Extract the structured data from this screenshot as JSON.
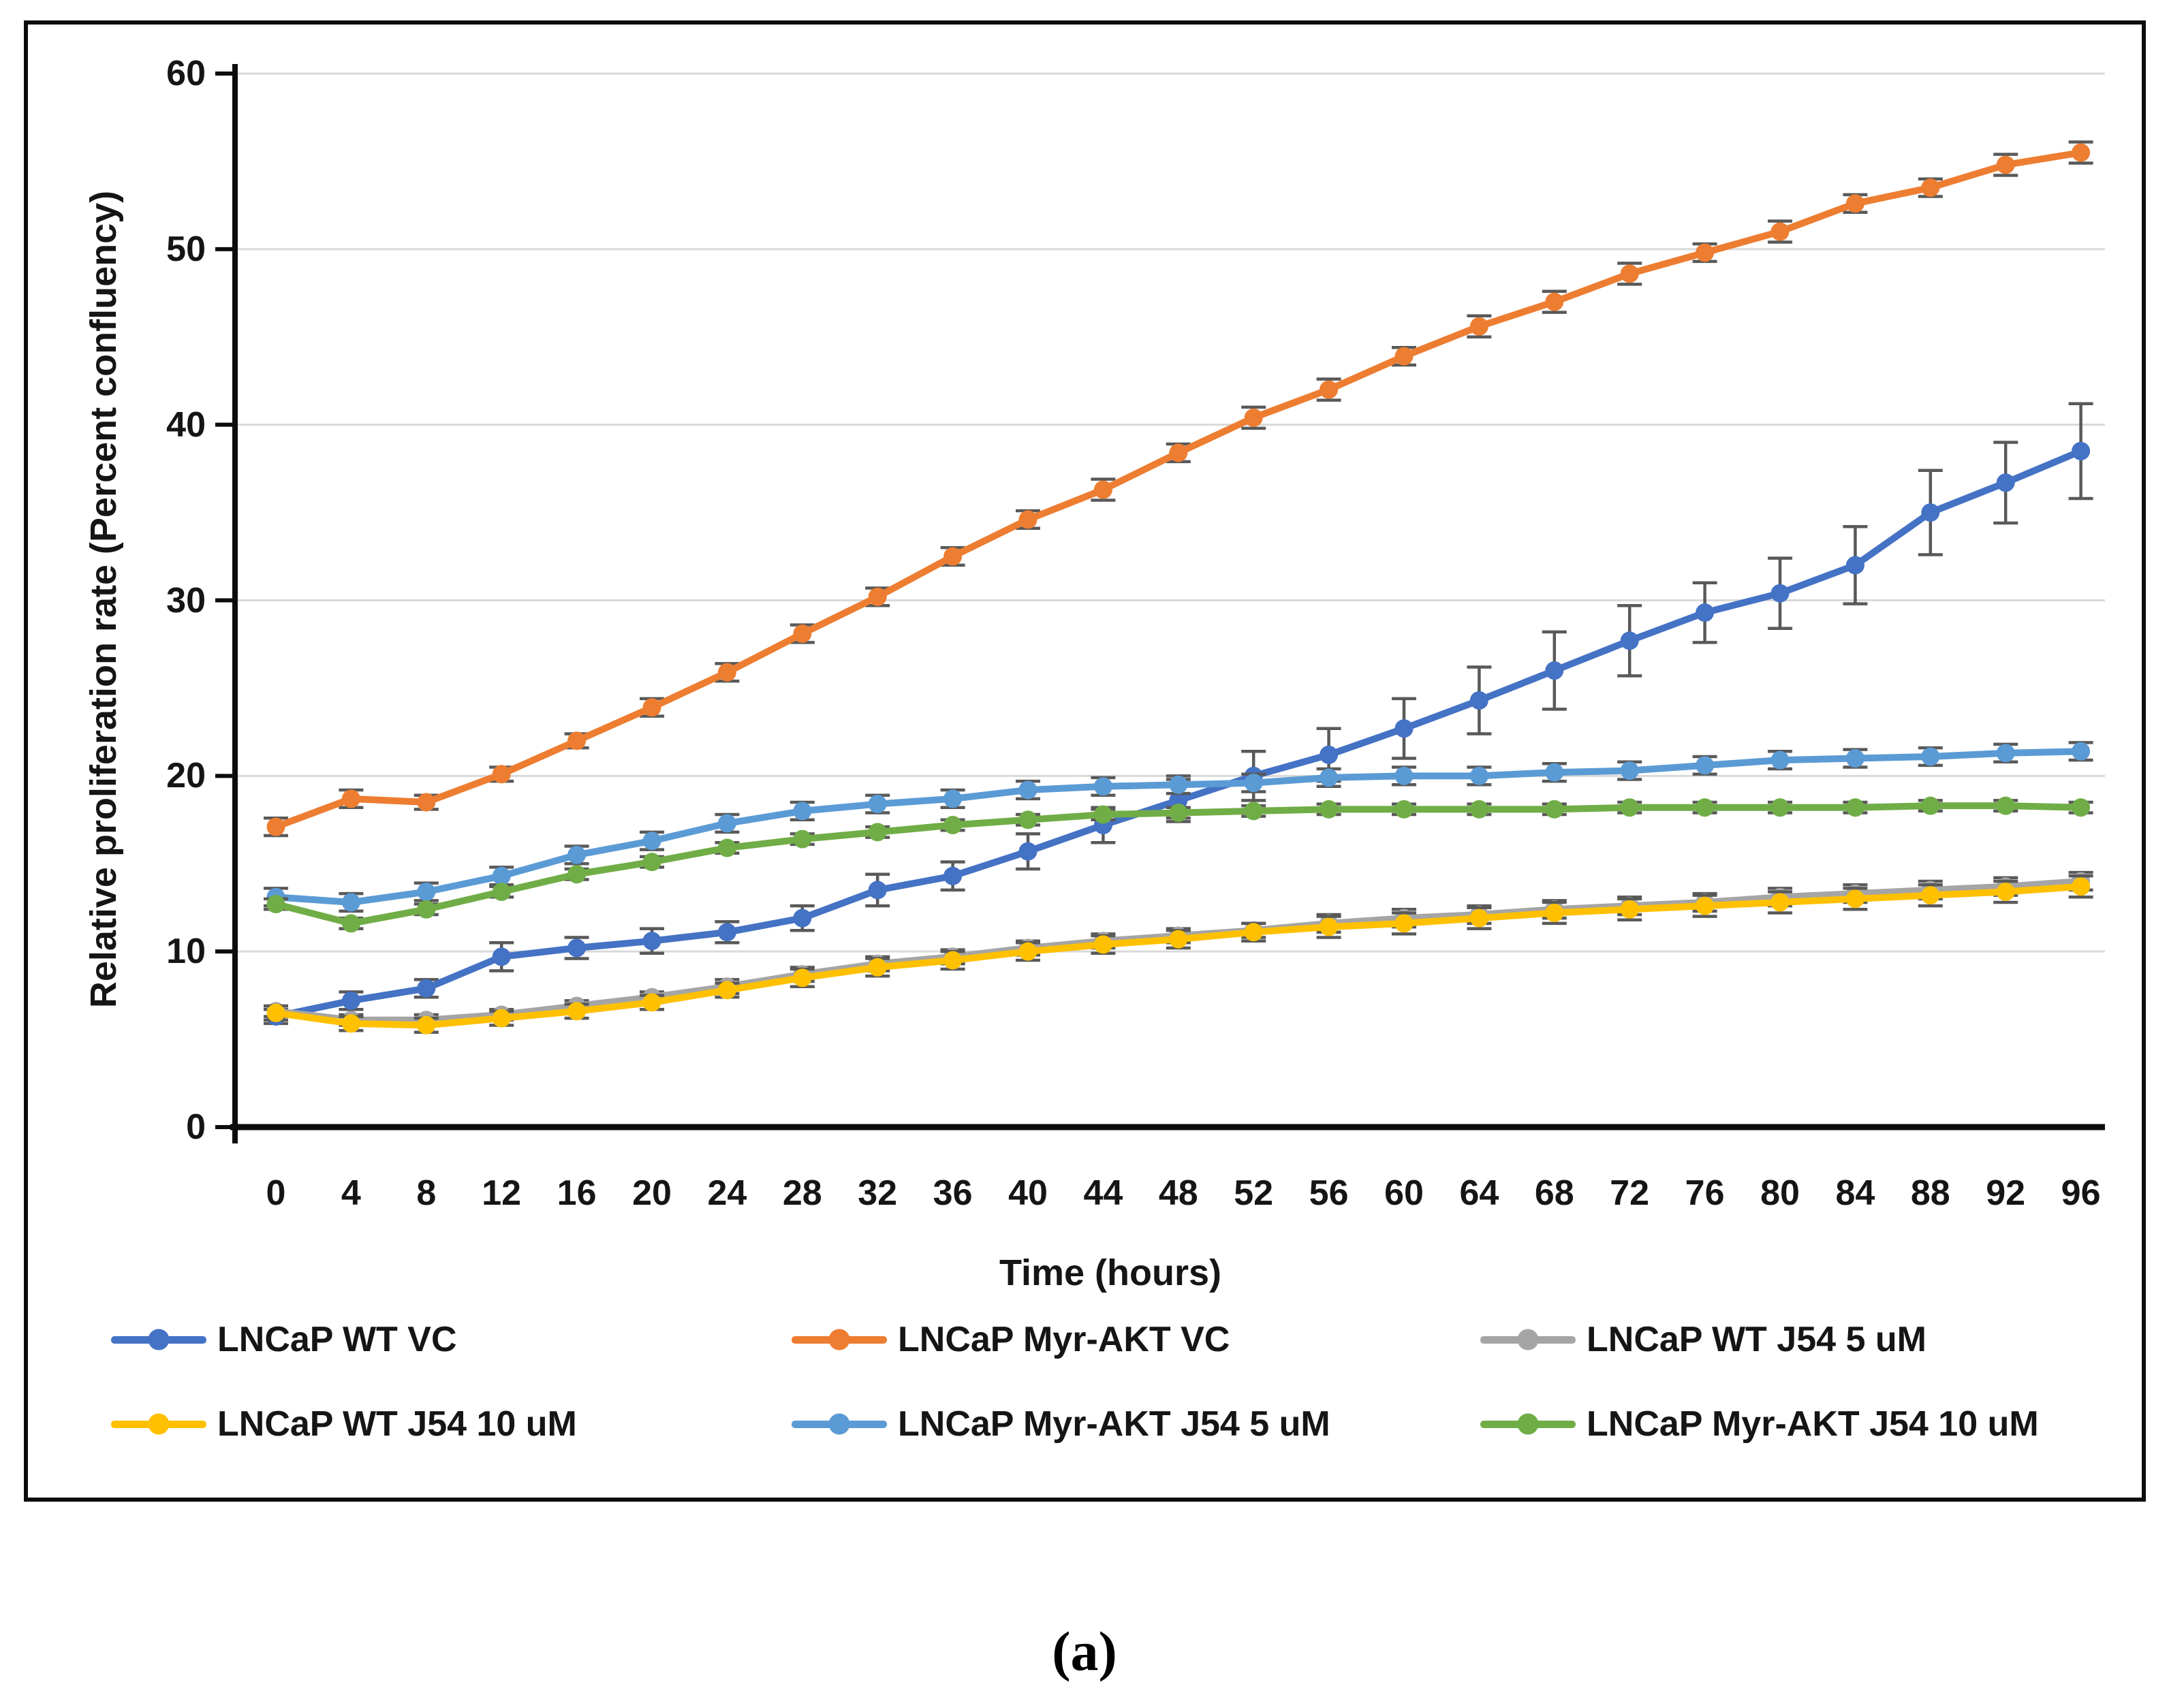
{
  "page": {
    "caption": "(a)",
    "background_color": "#ffffff",
    "border_color": "#0c0c0c"
  },
  "chart_data": {
    "type": "line",
    "title": "",
    "xlabel": "Time (hours)",
    "ylabel": "Relative proliferation rate (Percent confluency)",
    "x": [
      0,
      4,
      8,
      12,
      16,
      20,
      24,
      28,
      32,
      36,
      40,
      44,
      48,
      52,
      56,
      60,
      64,
      68,
      72,
      76,
      80,
      84,
      88,
      92,
      96
    ],
    "ylim": [
      0,
      60
    ],
    "ytick_step": 10,
    "yticklabels": [
      "0",
      "10",
      "20",
      "30",
      "40",
      "50",
      "60"
    ],
    "grid": true,
    "gridline_color": "#d9d9d9",
    "axis_color": "#0c0c0c",
    "error_bar_color": "#595959",
    "legend_position": "bottom",
    "marker": "circle",
    "series": [
      {
        "name": "LNCaP WT VC",
        "color": "#4472C4",
        "values": [
          6.3,
          7.2,
          7.9,
          9.7,
          10.2,
          10.6,
          11.1,
          11.9,
          13.5,
          14.3,
          15.7,
          17.2,
          18.6,
          20.0,
          21.2,
          22.7,
          24.3,
          26.0,
          27.7,
          29.3,
          30.4,
          32.0,
          35.0,
          36.7,
          38.5
        ],
        "errors": [
          0.4,
          0.5,
          0.5,
          0.8,
          0.6,
          0.7,
          0.6,
          0.7,
          0.9,
          0.8,
          1.0,
          1.0,
          1.2,
          1.4,
          1.5,
          1.7,
          1.9,
          2.2,
          2.0,
          1.7,
          2.0,
          2.2,
          2.4,
          2.3,
          2.7
        ]
      },
      {
        "name": "LNCaP Myr-AKT VC",
        "color": "#ED7D31",
        "values": [
          17.1,
          18.7,
          18.5,
          20.1,
          22.0,
          23.9,
          25.9,
          28.1,
          30.2,
          32.5,
          34.6,
          36.3,
          38.4,
          40.4,
          42.0,
          43.9,
          45.6,
          47.0,
          48.6,
          49.8,
          51.0,
          52.6,
          53.5,
          54.8,
          55.5
        ],
        "errors": [
          0.5,
          0.5,
          0.4,
          0.4,
          0.4,
          0.5,
          0.5,
          0.5,
          0.5,
          0.5,
          0.5,
          0.6,
          0.5,
          0.6,
          0.6,
          0.5,
          0.6,
          0.6,
          0.6,
          0.5,
          0.6,
          0.5,
          0.5,
          0.6,
          0.6
        ]
      },
      {
        "name": "LNCaP WT J54 5 uM",
        "color": "#A5A5A5",
        "values": [
          6.6,
          6.1,
          6.1,
          6.4,
          6.9,
          7.4,
          8.0,
          8.7,
          9.3,
          9.7,
          10.2,
          10.6,
          10.9,
          11.2,
          11.6,
          11.9,
          12.1,
          12.4,
          12.6,
          12.8,
          13.1,
          13.3,
          13.5,
          13.7,
          14.0
        ],
        "errors": [
          0.3,
          0.3,
          0.3,
          0.3,
          0.3,
          0.3,
          0.4,
          0.4,
          0.4,
          0.4,
          0.4,
          0.4,
          0.4,
          0.4,
          0.5,
          0.5,
          0.5,
          0.5,
          0.5,
          0.5,
          0.5,
          0.5,
          0.5,
          0.5,
          0.5
        ]
      },
      {
        "name": "LNCaP WT J54 10 uM",
        "color": "#FFC000",
        "values": [
          6.5,
          5.9,
          5.8,
          6.2,
          6.6,
          7.1,
          7.8,
          8.5,
          9.1,
          9.5,
          10.0,
          10.4,
          10.7,
          11.1,
          11.4,
          11.6,
          11.9,
          12.2,
          12.4,
          12.6,
          12.8,
          13.0,
          13.2,
          13.4,
          13.7
        ],
        "errors": [
          0.4,
          0.4,
          0.4,
          0.4,
          0.4,
          0.4,
          0.4,
          0.5,
          0.5,
          0.5,
          0.5,
          0.5,
          0.5,
          0.5,
          0.6,
          0.6,
          0.6,
          0.6,
          0.6,
          0.6,
          0.6,
          0.6,
          0.6,
          0.6,
          0.6
        ]
      },
      {
        "name": "LNCaP Myr-AKT J54 5 uM",
        "color": "#5B9BD5",
        "values": [
          13.1,
          12.8,
          13.4,
          14.3,
          15.5,
          16.3,
          17.3,
          18.0,
          18.4,
          18.7,
          19.2,
          19.4,
          19.5,
          19.6,
          19.9,
          20.0,
          20.0,
          20.2,
          20.3,
          20.6,
          20.9,
          21.0,
          21.1,
          21.3,
          21.4
        ],
        "errors": [
          0.5,
          0.5,
          0.5,
          0.5,
          0.5,
          0.5,
          0.5,
          0.5,
          0.5,
          0.5,
          0.5,
          0.5,
          0.5,
          0.5,
          0.5,
          0.5,
          0.5,
          0.5,
          0.5,
          0.5,
          0.5,
          0.5,
          0.5,
          0.5,
          0.5
        ]
      },
      {
        "name": "LNCaP Myr-AKT J54 10 uM",
        "color": "#70AD47",
        "values": [
          12.7,
          11.6,
          12.4,
          13.4,
          14.4,
          15.1,
          15.9,
          16.4,
          16.8,
          17.2,
          17.5,
          17.8,
          17.9,
          18.0,
          18.1,
          18.1,
          18.1,
          18.1,
          18.2,
          18.2,
          18.2,
          18.2,
          18.3,
          18.3,
          18.2
        ],
        "errors": [
          0.3,
          0.3,
          0.3,
          0.3,
          0.3,
          0.3,
          0.3,
          0.3,
          0.3,
          0.3,
          0.3,
          0.3,
          0.3,
          0.3,
          0.3,
          0.3,
          0.3,
          0.3,
          0.3,
          0.3,
          0.3,
          0.3,
          0.3,
          0.3,
          0.3
        ]
      }
    ]
  }
}
